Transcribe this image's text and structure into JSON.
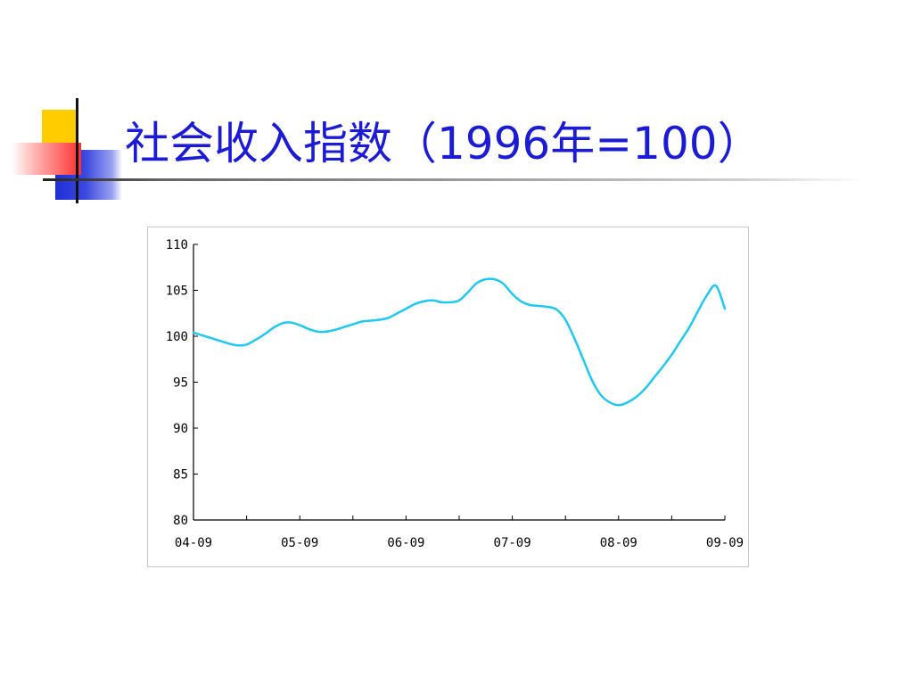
{
  "slide": {
    "title": "社会收入指数（1996年=100）"
  },
  "colors": {
    "title": "#1b1bd6",
    "line": "#1ec8f0",
    "axis": "#000000"
  },
  "chart_data": {
    "type": "line",
    "title": "",
    "xlabel": "",
    "ylabel": "",
    "ylim": [
      80,
      110
    ],
    "yticks": [
      80,
      85,
      90,
      95,
      100,
      105,
      110
    ],
    "ytick_labels": [
      "80",
      "85",
      "90",
      "95",
      "100",
      "105",
      "110"
    ],
    "x_tick_labels": [
      "04-09",
      "05-09",
      "06-09",
      "07-09",
      "08-09",
      "09-09"
    ],
    "x_range": [
      0,
      60
    ],
    "x_minor_ticks": [
      0,
      6,
      12,
      18,
      24,
      30,
      36,
      42,
      48,
      54,
      60
    ],
    "grid": false,
    "legend": "none",
    "series": [
      {
        "x": [
          0,
          1,
          2,
          3,
          4,
          5,
          6,
          7,
          8,
          9,
          10,
          11,
          12,
          13,
          14,
          15,
          16,
          17,
          18,
          19,
          20,
          21,
          22,
          23,
          24,
          25,
          26,
          27,
          28,
          29,
          30,
          31,
          32,
          33,
          34,
          35,
          36,
          37,
          38,
          39,
          40,
          41,
          42,
          43,
          44,
          45,
          46,
          47,
          48,
          49,
          50,
          51,
          52,
          53,
          54,
          55,
          56,
          57,
          58,
          59,
          60
        ],
        "values": [
          100.4,
          100.1,
          99.8,
          99.5,
          99.2,
          99.0,
          99.1,
          99.6,
          100.2,
          100.9,
          101.4,
          101.5,
          101.2,
          100.8,
          100.5,
          100.5,
          100.7,
          101.0,
          101.3,
          101.6,
          101.7,
          101.8,
          102.0,
          102.5,
          103.0,
          103.5,
          103.8,
          103.9,
          103.7,
          103.7,
          103.9,
          104.8,
          105.8,
          106.2,
          106.2,
          105.7,
          104.6,
          103.8,
          103.4,
          103.3,
          103.2,
          102.9,
          101.8,
          99.8,
          97.5,
          95.2,
          93.6,
          92.8,
          92.5,
          92.8,
          93.4,
          94.3,
          95.5,
          96.7,
          98.0,
          99.5,
          101.0,
          102.8,
          104.5,
          105.5,
          103.0
        ]
      }
    ]
  }
}
